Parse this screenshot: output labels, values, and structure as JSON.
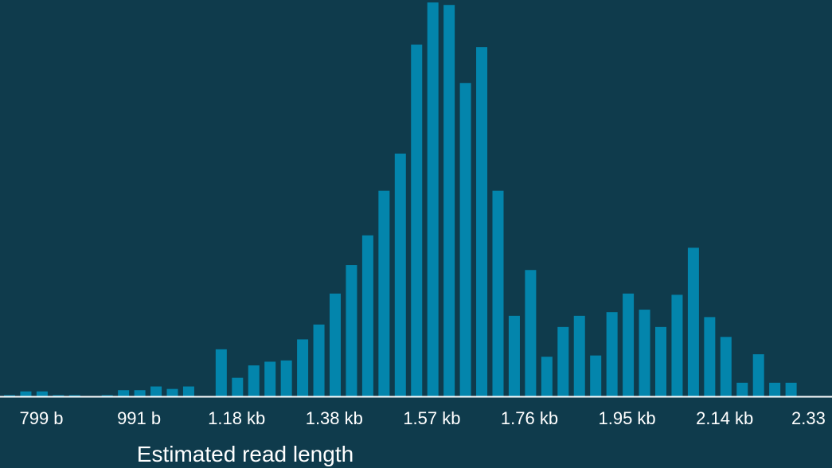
{
  "chart_data": {
    "type": "bar",
    "title": "",
    "xlabel": "Estimated read length",
    "ylabel": "",
    "grid": false,
    "legend": "none",
    "colors": {
      "background": "#0f3b4c",
      "bar": "#0385ac",
      "axis": "#ffffff",
      "text": "#ffffff"
    },
    "x_tick_labels": [
      "799 b",
      "991 b",
      "1.18 kb",
      "1.38 kb",
      "1.57 kb",
      "1.76 kb",
      "1.95 kb",
      "2.14 kb",
      "2.33"
    ],
    "ylim": [
      0,
      1.6
    ],
    "values": [
      0.005,
      0.02,
      0.02,
      0.005,
      0.005,
      0,
      0.005,
      0.025,
      0.025,
      0.04,
      0.03,
      0.04,
      0,
      0.19,
      0.075,
      0.125,
      0.14,
      0.145,
      0.23,
      0.29,
      0.415,
      0.53,
      0.65,
      0.83,
      0.98,
      1.42,
      1.59,
      1.58,
      1.265,
      1.41,
      0.83,
      0.325,
      0.51,
      0.16,
      0.28,
      0.325,
      0.165,
      0.34,
      0.415,
      0.35,
      0.28,
      0.41,
      0.6,
      0.32,
      0.24,
      0.055,
      0.17,
      0.055,
      0.055
    ]
  }
}
